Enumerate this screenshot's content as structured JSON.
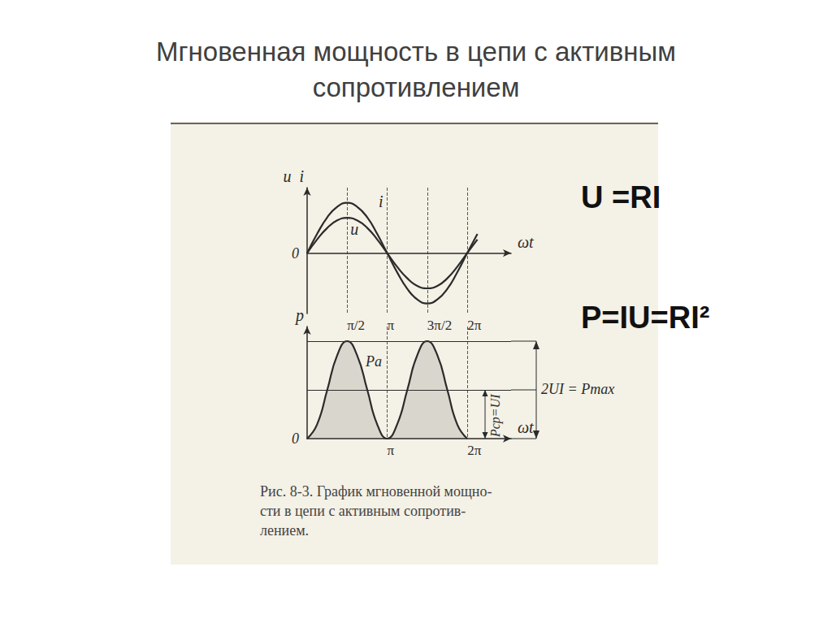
{
  "title": "Мгновенная мощность в цепи с активным сопротивлением",
  "formulas": [
    "U =RI",
    "P=IU=RI²"
  ],
  "caption": [
    "Рис. 8-3. График мгновенной мощно-",
    "сти в цепи с активным сопротив-",
    "лением."
  ],
  "chart_data": [
    {
      "type": "line",
      "x_label": "ωt",
      "y_label": "u  i",
      "x": [
        0,
        0.39,
        0.79,
        1.18,
        1.57,
        1.96,
        2.36,
        2.75,
        3.14,
        3.53,
        3.93,
        4.32,
        4.71,
        5.11,
        5.5,
        5.89,
        6.28,
        6.68
      ],
      "series": [
        {
          "name": "i",
          "color": "#2b2b2b",
          "values": [
            0,
            0.38,
            0.71,
            0.92,
            1,
            0.92,
            0.71,
            0.38,
            0,
            -0.38,
            -0.71,
            -0.92,
            -1,
            -0.92,
            -0.71,
            -0.38,
            0,
            0.38
          ]
        },
        {
          "name": "u",
          "color": "#2b2b2b",
          "values": [
            0,
            0.27,
            0.5,
            0.65,
            0.7,
            0.65,
            0.5,
            0.27,
            0,
            -0.27,
            -0.5,
            -0.65,
            -0.7,
            -0.65,
            -0.5,
            -0.27,
            0,
            0.27
          ]
        }
      ],
      "xlim": [
        0,
        8
      ],
      "xticks": [
        {
          "value": 1.5708,
          "label": "π/2"
        },
        {
          "value": 3.1416,
          "label": "π"
        },
        {
          "value": 4.7124,
          "label": "3π/2"
        },
        {
          "value": 6.2832,
          "label": "2π"
        }
      ],
      "ylim": [
        -1.2,
        1.3
      ],
      "yticks": [
        0
      ],
      "grid": true
    },
    {
      "type": "area",
      "x_label": "ωt",
      "y_label": "p",
      "x": [
        0,
        0.39,
        0.79,
        1.18,
        1.57,
        1.96,
        2.36,
        2.75,
        3.14,
        3.53,
        3.93,
        4.32,
        4.71,
        5.11,
        5.5,
        5.89,
        6.28
      ],
      "series": [
        {
          "name": "p",
          "color": "#2b2b2b",
          "values": [
            0,
            0.29,
            1,
            1.71,
            2,
            1.71,
            1,
            0.29,
            0,
            0.29,
            1,
            1.71,
            2,
            1.71,
            1,
            0.29,
            0
          ]
        }
      ],
      "mean": 1,
      "mean_label": "Pср=UI",
      "max": 2,
      "max_label": "2UI = Pmax",
      "area_label": "Pa",
      "xlim": [
        0,
        8
      ],
      "xticks": [
        {
          "value": 3.1416,
          "label": "π"
        },
        {
          "value": 6.2832,
          "label": "2π"
        }
      ],
      "ylim": [
        0,
        2.3
      ],
      "yticks": [
        0
      ],
      "grid": true
    }
  ]
}
